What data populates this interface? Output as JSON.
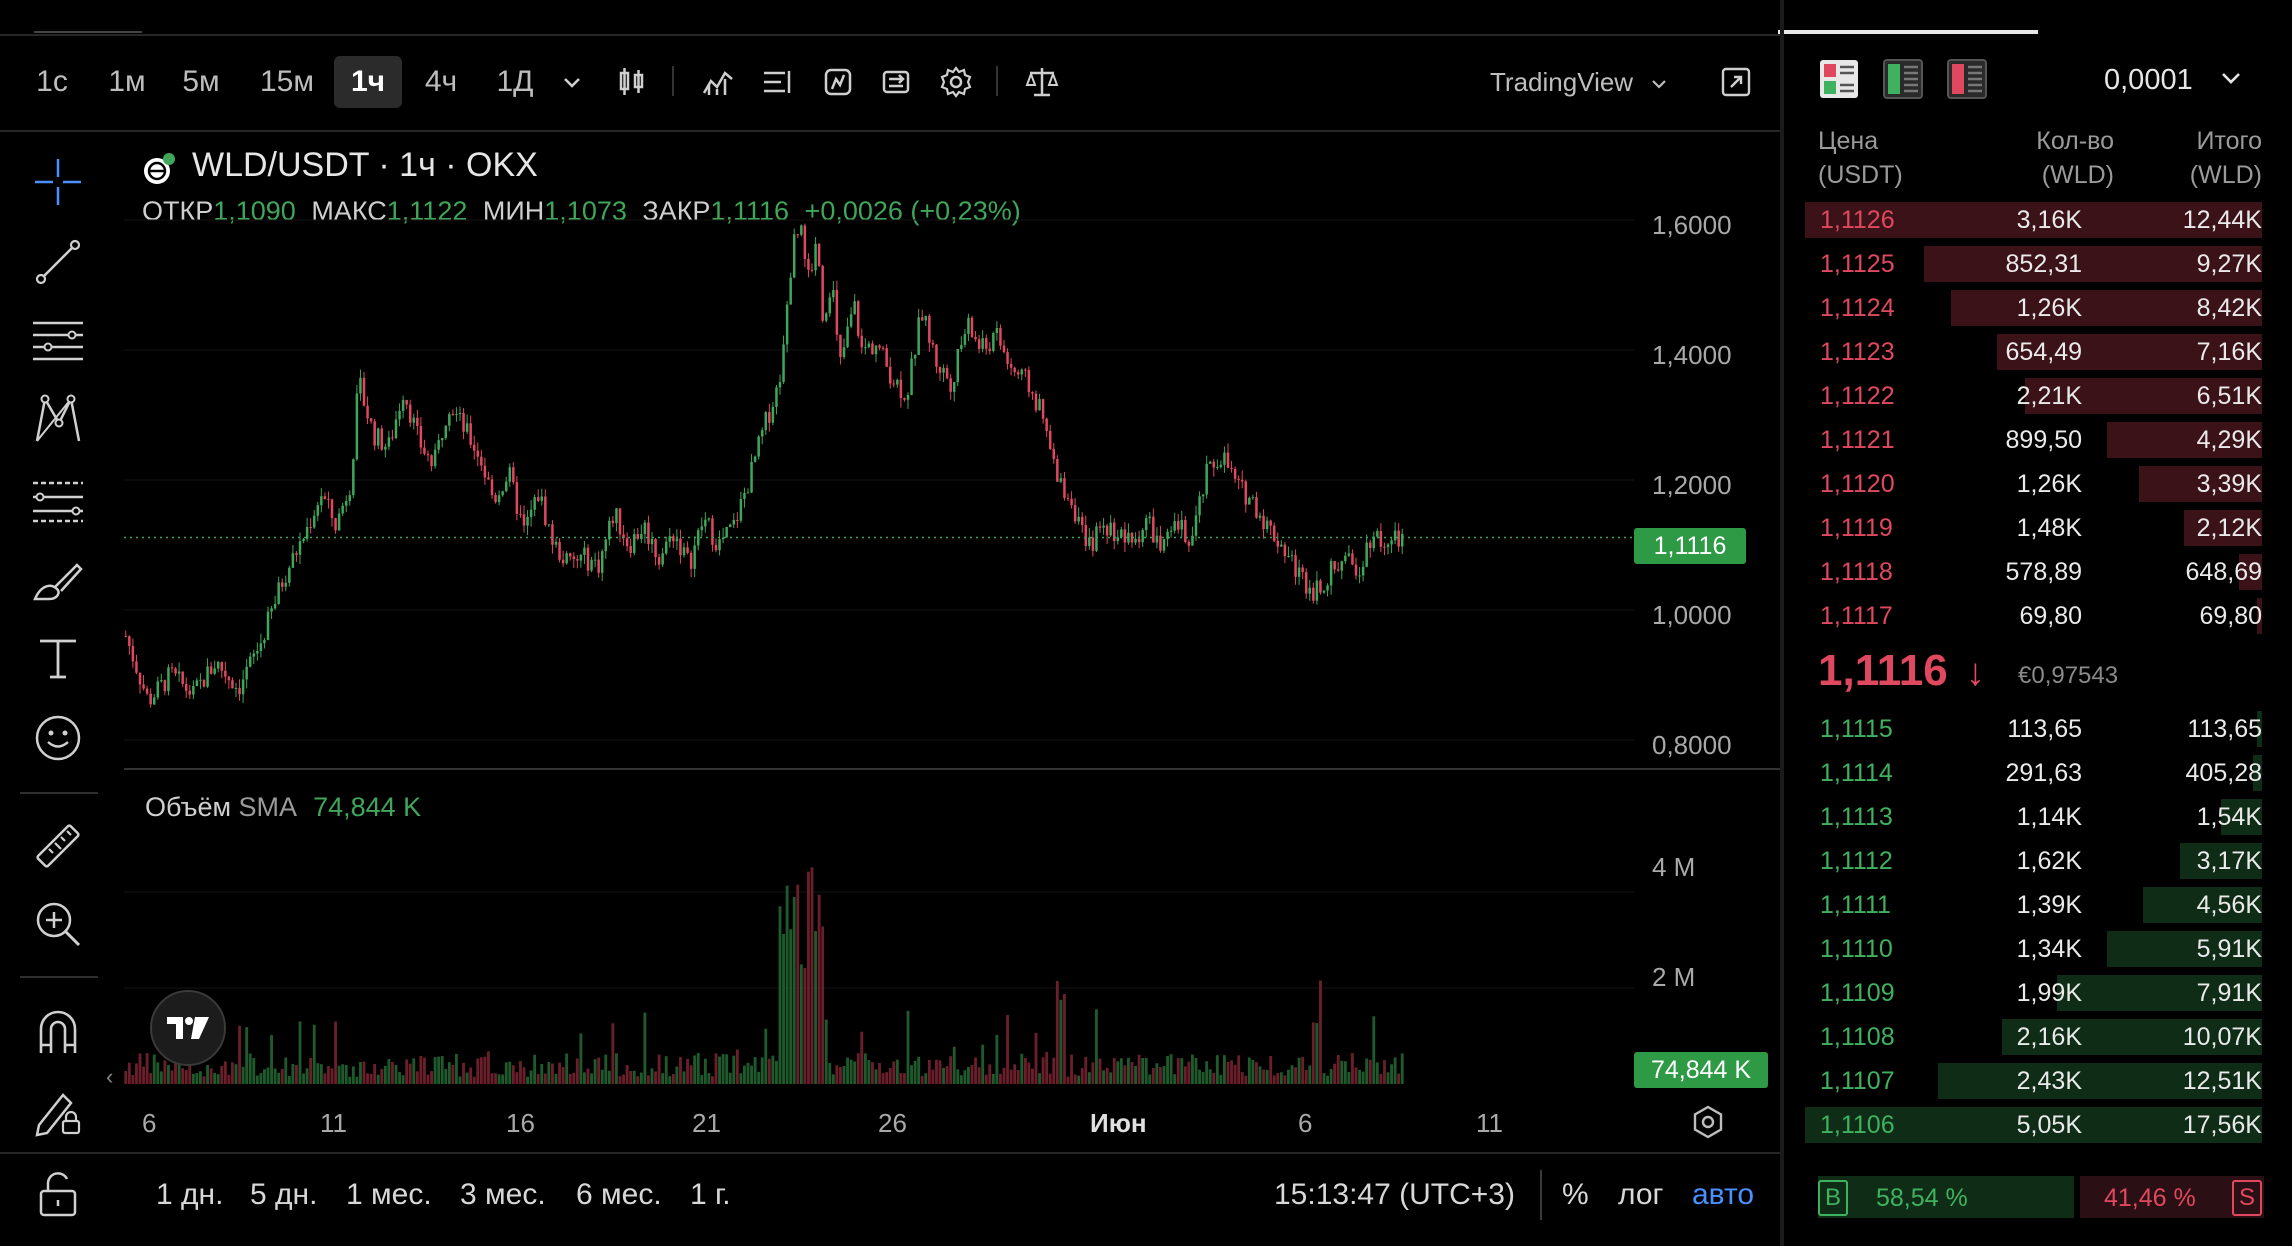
{
  "toolbar": {
    "timeframes": [
      "1с",
      "1м",
      "5м",
      "15м",
      "1ч",
      "4ч",
      "1Д"
    ],
    "active_timeframe": "1ч",
    "brand": "TradingView"
  },
  "chart": {
    "symbol": "WLD/USDT · 1ч · OKX",
    "ohlc": {
      "open_label": "ОТКР",
      "open": "1,1090",
      "high_label": "МАКС",
      "high": "1,1122",
      "low_label": "МИН",
      "low": "1,1073",
      "close_label": "ЗАКР",
      "close": "1,1116",
      "change": "+0,0026 (+0,23%)"
    },
    "price_axis": [
      "1,6000",
      "1,4000",
      "1,2000",
      "1,0000",
      "0,8000"
    ],
    "current_price": "1,1116",
    "volume": {
      "title": "Объём",
      "sma_label": "SMA",
      "sma_value": "74,844 K",
      "axis": [
        "4 M",
        "2 M"
      ],
      "current": "74,844 K"
    },
    "x_axis": [
      "6",
      "11",
      "16",
      "21",
      "26",
      "Июн",
      "6",
      "11"
    ],
    "colors": {
      "up": "#3fa65a",
      "down": "#e0485f"
    }
  },
  "chart_data": {
    "type": "candlestick",
    "title": "WLD/USDT · 1ч · OKX",
    "x": [
      "6",
      "11",
      "16",
      "21",
      "26",
      "Июн",
      "6",
      "11"
    ],
    "ylim": [
      0.75,
      1.65
    ],
    "close_path": [
      [
        0,
        0.96
      ],
      [
        1.5,
        0.86
      ],
      [
        3,
        0.9
      ],
      [
        4.5,
        0.87
      ],
      [
        6,
        0.92
      ],
      [
        7.5,
        0.88
      ],
      [
        9,
        0.95
      ],
      [
        10.5,
        1.05
      ],
      [
        12,
        1.12
      ],
      [
        13,
        1.18
      ],
      [
        14,
        1.13
      ],
      [
        15,
        1.2
      ],
      [
        15.5,
        1.35
      ],
      [
        16.5,
        1.27
      ],
      [
        17.5,
        1.25
      ],
      [
        18.5,
        1.34
      ],
      [
        19.5,
        1.26
      ],
      [
        20.5,
        1.22
      ],
      [
        21.5,
        1.32
      ],
      [
        22.5,
        1.28
      ],
      [
        23.5,
        1.24
      ],
      [
        24.5,
        1.17
      ],
      [
        25.5,
        1.21
      ],
      [
        26.5,
        1.12
      ],
      [
        27.5,
        1.18
      ],
      [
        28.5,
        1.1
      ],
      [
        29.5,
        1.07
      ],
      [
        30.5,
        1.08
      ],
      [
        31.5,
        1.07
      ],
      [
        32.5,
        1.15
      ],
      [
        33.5,
        1.1
      ],
      [
        34.5,
        1.13
      ],
      [
        35.5,
        1.08
      ],
      [
        36.5,
        1.12
      ],
      [
        37.5,
        1.07
      ],
      [
        38.5,
        1.14
      ],
      [
        39.5,
        1.1
      ],
      [
        40.5,
        1.13
      ],
      [
        41.5,
        1.2
      ],
      [
        42.5,
        1.28
      ],
      [
        43.5,
        1.35
      ],
      [
        44.5,
        1.57
      ],
      [
        45,
        1.6
      ],
      [
        45.5,
        1.5
      ],
      [
        46,
        1.58
      ],
      [
        46.5,
        1.43
      ],
      [
        47,
        1.52
      ],
      [
        47.5,
        1.37
      ],
      [
        48.5,
        1.47
      ],
      [
        49,
        1.4
      ],
      [
        50,
        1.41
      ],
      [
        51,
        1.36
      ],
      [
        52,
        1.33
      ],
      [
        53,
        1.46
      ],
      [
        54,
        1.38
      ],
      [
        55,
        1.35
      ],
      [
        56,
        1.44
      ],
      [
        57,
        1.4
      ],
      [
        58,
        1.42
      ],
      [
        59,
        1.37
      ],
      [
        60,
        1.35
      ],
      [
        61,
        1.3
      ],
      [
        62,
        1.2
      ],
      [
        63,
        1.17
      ],
      [
        64,
        1.09
      ],
      [
        65,
        1.13
      ],
      [
        66,
        1.12
      ],
      [
        67,
        1.1
      ],
      [
        68,
        1.14
      ],
      [
        69,
        1.09
      ],
      [
        70,
        1.13
      ],
      [
        71,
        1.11
      ],
      [
        72,
        1.21
      ],
      [
        73,
        1.24
      ],
      [
        74,
        1.19
      ],
      [
        75,
        1.17
      ],
      [
        76,
        1.13
      ],
      [
        77,
        1.1
      ],
      [
        78,
        1.06
      ],
      [
        79,
        1.03
      ],
      [
        80,
        1.05
      ],
      [
        81,
        1.08
      ],
      [
        82,
        1.06
      ],
      [
        83,
        1.12
      ],
      [
        84,
        1.1
      ],
      [
        85,
        1.11
      ]
    ],
    "volume_ylim": [
      0,
      5.0
    ],
    "current_price": 1.1116
  },
  "orderbook": {
    "precision": "0,0001",
    "headers": {
      "price": "Цена",
      "price_unit": "(USDT)",
      "qty": "Кол-во",
      "qty_unit": "(WLD)",
      "total": "Итого",
      "total_unit": "(WLD)"
    },
    "asks": [
      {
        "price": "1,1126",
        "qty": "3,16K",
        "total": "12,44K",
        "depth": 1.0
      },
      {
        "price": "1,1125",
        "qty": "852,31",
        "total": "9,27K",
        "depth": 0.74
      },
      {
        "price": "1,1124",
        "qty": "1,26K",
        "total": "8,42K",
        "depth": 0.68
      },
      {
        "price": "1,1123",
        "qty": "654,49",
        "total": "7,16K",
        "depth": 0.58
      },
      {
        "price": "1,1122",
        "qty": "2,21K",
        "total": "6,51K",
        "depth": 0.52
      },
      {
        "price": "1,1121",
        "qty": "899,50",
        "total": "4,29K",
        "depth": 0.34
      },
      {
        "price": "1,1120",
        "qty": "1,26K",
        "total": "3,39K",
        "depth": 0.27
      },
      {
        "price": "1,1119",
        "qty": "1,48K",
        "total": "2,12K",
        "depth": 0.17
      },
      {
        "price": "1,1118",
        "qty": "578,89",
        "total": "648,69",
        "depth": 0.05
      },
      {
        "price": "1,1117",
        "qty": "69,80",
        "total": "69,80",
        "depth": 0.01
      }
    ],
    "mid": {
      "price": "1,1116",
      "arrow": "↓",
      "eur": "€0,97543"
    },
    "bids": [
      {
        "price": "1,1115",
        "qty": "113,65",
        "total": "113,65",
        "depth": 0.01
      },
      {
        "price": "1,1114",
        "qty": "291,63",
        "total": "405,28",
        "depth": 0.02
      },
      {
        "price": "1,1113",
        "qty": "1,14K",
        "total": "1,54K",
        "depth": 0.09
      },
      {
        "price": "1,1112",
        "qty": "1,62K",
        "total": "3,17K",
        "depth": 0.18
      },
      {
        "price": "1,1111",
        "qty": "1,39K",
        "total": "4,56K",
        "depth": 0.26
      },
      {
        "price": "1,1110",
        "qty": "1,34K",
        "total": "5,91K",
        "depth": 0.34
      },
      {
        "price": "1,1109",
        "qty": "1,99K",
        "total": "7,91K",
        "depth": 0.45
      },
      {
        "price": "1,1108",
        "qty": "2,16K",
        "total": "10,07K",
        "depth": 0.57
      },
      {
        "price": "1,1107",
        "qty": "2,43K",
        "total": "12,51K",
        "depth": 0.71
      },
      {
        "price": "1,1106",
        "qty": "5,05K",
        "total": "17,56K",
        "depth": 1.0
      }
    ],
    "ratio": {
      "buy_label": "B",
      "buy": "58,54 %",
      "sell": "41,46 %",
      "sell_label": "S"
    }
  },
  "bottom": {
    "ranges": [
      "1 дн.",
      "5 дн.",
      "1 мес.",
      "3 мес.",
      "6 мес.",
      "1 г."
    ],
    "time": "15:13:47 (UTC+3)",
    "percent": "%",
    "log": "лог",
    "auto": "авто"
  }
}
